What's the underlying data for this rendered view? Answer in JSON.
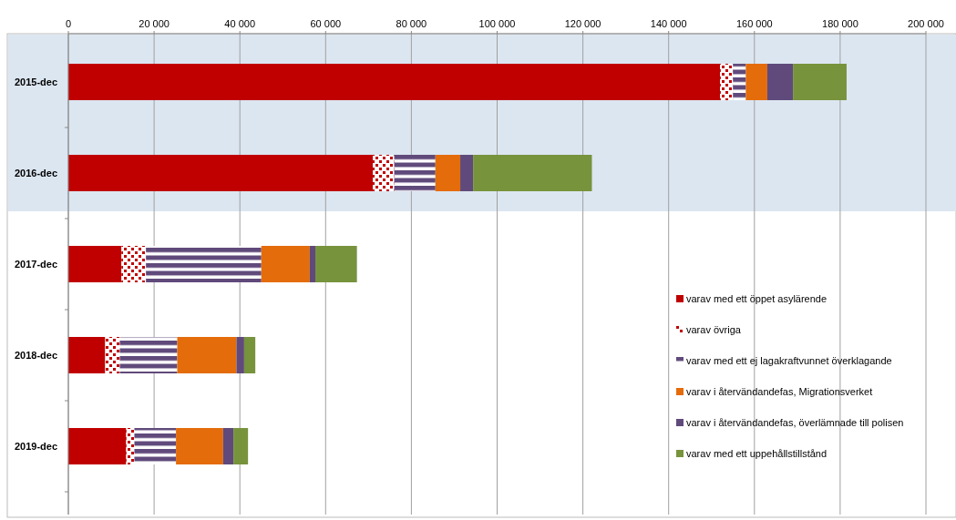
{
  "chart_data": {
    "type": "bar",
    "orientation": "horizontal",
    "stacked": true,
    "categories": [
      "2015-dec",
      "2016-dec",
      "2017-dec",
      "2018-dec",
      "2019-dec"
    ],
    "series": [
      {
        "name": "varav med ett öppet asylärende",
        "color": "#c00000",
        "values": [
          152000,
          71000,
          12400,
          8600,
          13500
        ]
      },
      {
        "name": "varav övriga",
        "color": "#c00000",
        "values": [
          3000,
          5000,
          5700,
          3400,
          1900
        ]
      },
      {
        "name": "varav med ett  ej lagakraftvunnet överklagande",
        "color": "#604a7b",
        "values": [
          3000,
          9600,
          26900,
          13400,
          9700
        ]
      },
      {
        "name": "varav i återvändandefas, Migrationsverket",
        "color": "#e46c0a",
        "values": [
          5000,
          5800,
          11300,
          13800,
          11000
        ]
      },
      {
        "name": "varav i återvändandefas, överlämnade till polisen",
        "color": "#604a7b",
        "values": [
          6000,
          3000,
          1300,
          1800,
          2400
        ]
      },
      {
        "name": "varav med ett uppehållstillstånd",
        "color": "#77933c",
        "values": [
          12500,
          27700,
          9700,
          2600,
          3400
        ]
      }
    ],
    "xlim": [
      0,
      200000
    ],
    "xticks": [
      0,
      {
        "value": 20000,
        "label": "20 000"
      },
      {
        "value": 40000,
        "label": "40 000"
      },
      {
        "value": 60000,
        "label": "60 000"
      },
      {
        "value": 80000,
        "label": "80 000"
      },
      {
        "value": 100000,
        "label": "100 000"
      },
      {
        "value": 120000,
        "label": "120 000"
      },
      {
        "value": 140000,
        "label": "140 000"
      },
      {
        "value": 160000,
        "label": "160 000"
      },
      {
        "value": 180000,
        "label": "180 000"
      },
      {
        "value": 200000,
        "label": "200 000"
      }
    ],
    "bands": [
      {
        "axis": "y",
        "from": "2015-dec",
        "to": "2016-dec",
        "color": "#dce6f1"
      }
    ],
    "grid": "x",
    "legend": "right"
  }
}
